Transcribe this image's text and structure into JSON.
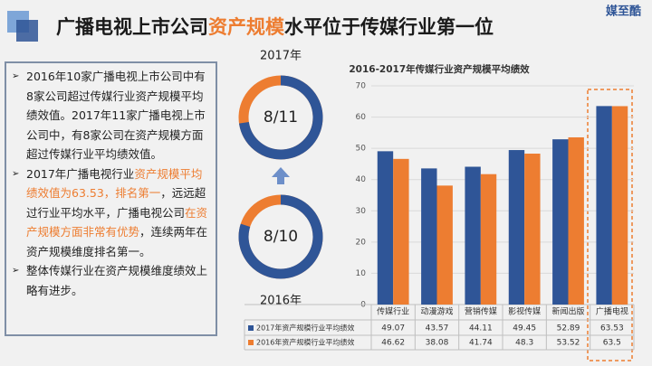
{
  "header": {
    "title": [
      {
        "text": "广播电视上市公司",
        "highlight": false
      },
      {
        "text": "资产规模",
        "highlight": true
      },
      {
        "text": "水平位于传媒行业第一位",
        "highlight": false
      }
    ],
    "logo": "媒至酷"
  },
  "bullets": [
    [
      {
        "text": "2016年10家广播电视上市公司中有8家公司超过传媒行业资产规模平均绩效值。2017年11家广播电视上市公司中，有8家公司在资产规模方面超过传媒行业平均绩效值。",
        "highlight": false
      }
    ],
    [
      {
        "text": "2017年广播电视行业",
        "highlight": false
      },
      {
        "text": "资产规模平均绩效值为63.53，排名第一",
        "highlight": true
      },
      {
        "text": "，远远超过行业平均水平，广播电视公司",
        "highlight": false
      },
      {
        "text": "在资产规模方面非常有优势",
        "highlight": true
      },
      {
        "text": "，连续两年在资产规模维度排名第一。",
        "highlight": false
      }
    ],
    [
      {
        "text": "整体传媒行业在资产规模维度绩效上略有进步。",
        "highlight": false
      }
    ]
  ],
  "donuts": [
    {
      "year": "2017年",
      "label": "8/11"
    },
    {
      "year": "2016年",
      "label": "8/10"
    }
  ],
  "chart_data": {
    "type": "bar",
    "title": "2016-2017年传媒行业资产规模平均绩效",
    "categories": [
      "传媒行业",
      "动漫游戏",
      "营销传媒",
      "影视传媒",
      "新闻出版",
      "广播电视"
    ],
    "series": [
      {
        "name": "2017年资产规模行业平均绩效",
        "color": "#2f5597",
        "values": [
          49.07,
          43.57,
          44.11,
          49.45,
          52.89,
          63.53
        ]
      },
      {
        "name": "2016年资产规模行业平均绩效",
        "color": "#ed7d31",
        "values": [
          46.62,
          38.08,
          41.74,
          48.3,
          53.52,
          63.5
        ]
      }
    ],
    "ylim": [
      0,
      70
    ],
    "yticks": [
      0,
      10,
      20,
      30,
      40,
      50,
      60,
      70
    ],
    "grid": true
  }
}
